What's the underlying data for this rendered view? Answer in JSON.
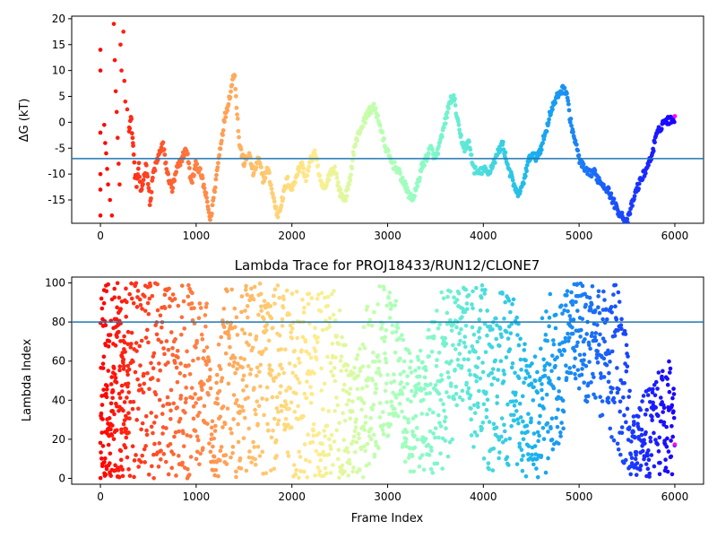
{
  "chart_data": [
    {
      "type": "scatter",
      "title": "",
      "xlabel": "",
      "ylabel": "ΔG (kT)",
      "xlim": [
        -300,
        6300
      ],
      "ylim": [
        -19.5,
        20.5
      ],
      "xticks": [
        "0",
        "1000",
        "2000",
        "3000",
        "4000",
        "5000",
        "6000"
      ],
      "yticks": [
        "20",
        "15",
        "10",
        "5",
        "0",
        "-5",
        "-10",
        "-15"
      ],
      "hline": -7,
      "hline_color": "#1f77b4",
      "grid": false,
      "colormap": "rainbow (red at frame 0 → purple at frame 6000)",
      "trace": [
        [
          0,
          14
        ],
        [
          0,
          10
        ],
        [
          0,
          -2
        ],
        [
          0,
          -10
        ],
        [
          0,
          -13
        ],
        [
          0,
          -18
        ],
        [
          40,
          -0.5
        ],
        [
          50,
          -4
        ],
        [
          60,
          -6
        ],
        [
          70,
          -9
        ],
        [
          80,
          -12
        ],
        [
          100,
          -15
        ],
        [
          120,
          -18
        ],
        [
          140,
          19
        ],
        [
          150,
          12
        ],
        [
          160,
          6
        ],
        [
          170,
          2
        ],
        [
          180,
          -3
        ],
        [
          190,
          -8
        ],
        [
          200,
          -12
        ],
        [
          210,
          15
        ],
        [
          220,
          10
        ],
        [
          240,
          17.5
        ],
        [
          250,
          8
        ],
        [
          260,
          4
        ],
        [
          280,
          2.5
        ],
        [
          300,
          -1
        ],
        [
          320,
          1
        ],
        [
          340,
          -4
        ],
        [
          360,
          -10
        ],
        [
          380,
          -12
        ],
        [
          400,
          -8
        ],
        [
          420,
          -14
        ],
        [
          450,
          -11
        ],
        [
          480,
          -8
        ],
        [
          500,
          -12
        ],
        [
          520,
          -16
        ],
        [
          550,
          -10
        ],
        [
          600,
          -7
        ],
        [
          650,
          -4
        ],
        [
          700,
          -10
        ],
        [
          750,
          -13
        ],
        [
          800,
          -9
        ],
        [
          850,
          -7
        ],
        [
          900,
          -5
        ],
        [
          950,
          -12
        ],
        [
          1000,
          -8
        ],
        [
          1050,
          -10
        ],
        [
          1100,
          -14
        ],
        [
          1150,
          -19
        ],
        [
          1200,
          -12
        ],
        [
          1250,
          -5
        ],
        [
          1300,
          1
        ],
        [
          1350,
          5
        ],
        [
          1380,
          8
        ],
        [
          1400,
          10
        ],
        [
          1420,
          4
        ],
        [
          1450,
          -4
        ],
        [
          1500,
          -8
        ],
        [
          1550,
          -6
        ],
        [
          1600,
          -10
        ],
        [
          1650,
          -7
        ],
        [
          1700,
          -11
        ],
        [
          1750,
          -9
        ],
        [
          1800,
          -14
        ],
        [
          1850,
          -18
        ],
        [
          1900,
          -15
        ],
        [
          1950,
          -11
        ],
        [
          2000,
          -13
        ],
        [
          2050,
          -10
        ],
        [
          2100,
          -8
        ],
        [
          2150,
          -11
        ],
        [
          2200,
          -7
        ],
        [
          2250,
          -6
        ],
        [
          2300,
          -12
        ],
        [
          2350,
          -13
        ],
        [
          2400,
          -9.5
        ],
        [
          2450,
          -9
        ],
        [
          2500,
          -13.5
        ],
        [
          2550,
          -15
        ],
        [
          2600,
          -12
        ],
        [
          2650,
          -5
        ],
        [
          2700,
          -2
        ],
        [
          2750,
          0
        ],
        [
          2800,
          2
        ],
        [
          2850,
          3
        ],
        [
          2900,
          1
        ],
        [
          2950,
          -3
        ],
        [
          3000,
          -6
        ],
        [
          3050,
          -8
        ],
        [
          3100,
          -9
        ],
        [
          3150,
          -11
        ],
        [
          3200,
          -13
        ],
        [
          3250,
          -15
        ],
        [
          3300,
          -13
        ],
        [
          3350,
          -9
        ],
        [
          3400,
          -7
        ],
        [
          3450,
          -5
        ],
        [
          3500,
          -7
        ],
        [
          3550,
          -4
        ],
        [
          3600,
          0
        ],
        [
          3650,
          4
        ],
        [
          3680,
          5
        ],
        [
          3700,
          4
        ],
        [
          3750,
          -2
        ],
        [
          3800,
          -5
        ],
        [
          3850,
          -4
        ],
        [
          3900,
          -9
        ],
        [
          3950,
          -10
        ],
        [
          4000,
          -9
        ],
        [
          4050,
          -10
        ],
        [
          4100,
          -8
        ],
        [
          4150,
          -6
        ],
        [
          4200,
          -4
        ],
        [
          4250,
          -8
        ],
        [
          4300,
          -11
        ],
        [
          4350,
          -14
        ],
        [
          4400,
          -13
        ],
        [
          4450,
          -9
        ],
        [
          4500,
          -6
        ],
        [
          4550,
          -7
        ],
        [
          4600,
          -5
        ],
        [
          4650,
          -2
        ],
        [
          4700,
          2
        ],
        [
          4750,
          4
        ],
        [
          4800,
          6
        ],
        [
          4850,
          6.5
        ],
        [
          4880,
          5
        ],
        [
          4900,
          1
        ],
        [
          4950,
          -3
        ],
        [
          5000,
          -7
        ],
        [
          5050,
          -9
        ],
        [
          5100,
          -10
        ],
        [
          5150,
          -9.5
        ],
        [
          5200,
          -11
        ],
        [
          5250,
          -12
        ],
        [
          5300,
          -13
        ],
        [
          5350,
          -15
        ],
        [
          5400,
          -17
        ],
        [
          5450,
          -18
        ],
        [
          5500,
          -19.5
        ],
        [
          5550,
          -16
        ],
        [
          5600,
          -13
        ],
        [
          5650,
          -11
        ],
        [
          5700,
          -9
        ],
        [
          5750,
          -7
        ],
        [
          5800,
          -3
        ],
        [
          5850,
          -1
        ],
        [
          5880,
          0
        ],
        [
          5900,
          0.2
        ],
        [
          5950,
          0.5
        ],
        [
          6000,
          0.8
        ]
      ]
    },
    {
      "type": "scatter",
      "title": "Lambda Trace for PROJ18433/RUN12/CLONE7",
      "xlabel": "Frame Index",
      "ylabel": "Lambda Index",
      "xlim": [
        -300,
        6300
      ],
      "ylim": [
        -3,
        103
      ],
      "xticks": [
        "0",
        "1000",
        "2000",
        "3000",
        "4000",
        "5000",
        "6000"
      ],
      "yticks": [
        "100",
        "80",
        "60",
        "40",
        "20",
        "0"
      ],
      "hline": 80,
      "hline_color": "#1f77b4",
      "grid": false,
      "colormap": "rainbow (red at frame 0 → purple at frame 6000)",
      "envelope": [
        [
          0,
          0,
          100
        ],
        [
          500,
          0,
          100
        ],
        [
          1000,
          0,
          100
        ],
        [
          1050,
          0,
          90
        ],
        [
          1100,
          0,
          100
        ],
        [
          1150,
          0,
          55
        ],
        [
          1200,
          0,
          40
        ],
        [
          1250,
          0,
          85
        ],
        [
          1300,
          0,
          100
        ],
        [
          1500,
          0,
          100
        ],
        [
          1600,
          2,
          100
        ],
        [
          1800,
          2,
          100
        ],
        [
          2000,
          0,
          100
        ],
        [
          2200,
          0,
          95
        ],
        [
          2300,
          0,
          100
        ],
        [
          2400,
          2,
          95
        ],
        [
          2500,
          0,
          100
        ],
        [
          2600,
          0,
          55
        ],
        [
          2700,
          0,
          70
        ],
        [
          2800,
          0,
          95
        ],
        [
          2900,
          10,
          100
        ],
        [
          3000,
          20,
          100
        ],
        [
          3100,
          30,
          90
        ],
        [
          3200,
          5,
          70
        ],
        [
          3300,
          0,
          60
        ],
        [
          3400,
          5,
          80
        ],
        [
          3500,
          0,
          90
        ],
        [
          3600,
          0,
          100
        ],
        [
          3700,
          20,
          100
        ],
        [
          3800,
          40,
          100
        ],
        [
          3900,
          15,
          100
        ],
        [
          4000,
          5,
          100
        ],
        [
          4100,
          0,
          90
        ],
        [
          4200,
          10,
          100
        ],
        [
          4300,
          0,
          95
        ],
        [
          4400,
          0,
          75
        ],
        [
          4500,
          0,
          60
        ],
        [
          4600,
          0,
          80
        ],
        [
          4700,
          5,
          95
        ],
        [
          4800,
          10,
          90
        ],
        [
          4900,
          50,
          100
        ],
        [
          5000,
          45,
          100
        ],
        [
          5100,
          35,
          100
        ],
        [
          5200,
          30,
          100
        ],
        [
          5300,
          25,
          100
        ],
        [
          5400,
          10,
          100
        ],
        [
          5500,
          5,
          90
        ],
        [
          5550,
          0,
          30
        ],
        [
          5700,
          0,
          45
        ],
        [
          5800,
          0,
          55
        ],
        [
          5900,
          0,
          65
        ],
        [
          6000,
          0,
          60
        ]
      ]
    }
  ]
}
